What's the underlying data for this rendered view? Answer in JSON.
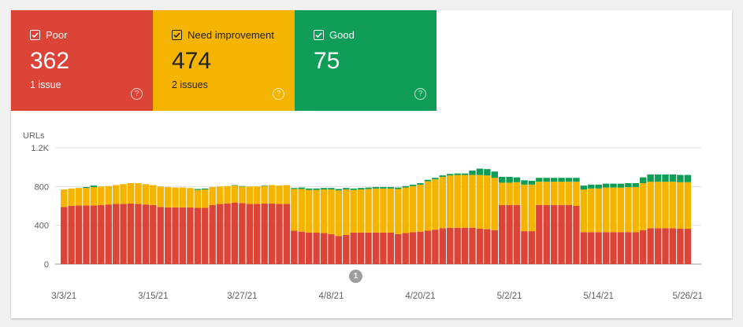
{
  "tiles": {
    "poor": {
      "label": "Poor",
      "count": "362",
      "issues": "1 issue",
      "color": "#db4437"
    },
    "need": {
      "label": "Need improvement",
      "count": "474",
      "issues": "2 issues",
      "color": "#f4b400"
    },
    "good": {
      "label": "Good",
      "count": "75",
      "color": "#0f9d58"
    },
    "help_icon": "?"
  },
  "annotation_marker": "1",
  "chart_data": {
    "type": "bar",
    "stacked": true,
    "ylabel": "URLs",
    "ylim": [
      0,
      1200
    ],
    "yticks": [
      "0",
      "400",
      "800",
      "1.2K"
    ],
    "ytick_values": [
      0,
      400,
      800,
      1200
    ],
    "xtick_labels": [
      "3/3/21",
      "3/15/21",
      "3/27/21",
      "4/8/21",
      "4/20/21",
      "5/2/21",
      "5/14/21",
      "5/26/21"
    ],
    "xtick_indices": [
      0,
      12,
      24,
      36,
      48,
      60,
      72,
      84
    ],
    "grid": true,
    "series": [
      {
        "name": "Poor",
        "color": "#db4437",
        "values": [
          590,
          600,
          605,
          605,
          605,
          610,
          615,
          620,
          620,
          625,
          620,
          615,
          610,
          590,
          585,
          585,
          585,
          585,
          580,
          580,
          610,
          620,
          625,
          635,
          630,
          620,
          620,
          625,
          625,
          620,
          620,
          345,
          335,
          325,
          325,
          320,
          310,
          290,
          300,
          325,
          325,
          325,
          325,
          325,
          325,
          310,
          320,
          330,
          335,
          345,
          355,
          370,
          375,
          375,
          375,
          375,
          365,
          360,
          350,
          610,
          610,
          610,
          340,
          340,
          610,
          610,
          610,
          610,
          610,
          600,
          330,
          330,
          330,
          330,
          330,
          330,
          330,
          330,
          350,
          370,
          370,
          370,
          370,
          365,
          365
        ]
      },
      {
        "name": "Need improvement",
        "values": [
          180,
          180,
          180,
          180,
          190,
          190,
          190,
          195,
          205,
          210,
          215,
          210,
          205,
          210,
          210,
          205,
          205,
          200,
          185,
          190,
          185,
          180,
          180,
          175,
          170,
          180,
          180,
          180,
          190,
          190,
          195,
          430,
          440,
          440,
          440,
          450,
          460,
          470,
          470,
          440,
          445,
          450,
          455,
          455,
          455,
          465,
          470,
          475,
          485,
          510,
          520,
          530,
          540,
          545,
          545,
          545,
          555,
          555,
          540,
          230,
          230,
          235,
          480,
          480,
          240,
          240,
          240,
          240,
          240,
          250,
          440,
          450,
          450,
          460,
          460,
          460,
          465,
          465,
          485,
          480,
          480,
          480,
          480,
          480,
          480
        ],
        "color": "#f4b400"
      },
      {
        "name": "Good",
        "values": [
          0,
          0,
          0,
          10,
          15,
          0,
          0,
          0,
          0,
          0,
          0,
          0,
          0,
          0,
          0,
          0,
          0,
          0,
          10,
          10,
          0,
          0,
          0,
          5,
          5,
          0,
          0,
          5,
          0,
          0,
          0,
          10,
          15,
          15,
          15,
          15,
          15,
          15,
          15,
          15,
          15,
          15,
          15,
          15,
          15,
          15,
          15,
          15,
          15,
          15,
          15,
          15,
          15,
          15,
          15,
          45,
          65,
          65,
          65,
          60,
          60,
          50,
          45,
          40,
          40,
          40,
          40,
          40,
          40,
          40,
          40,
          40,
          40,
          40,
          40,
          40,
          40,
          40,
          60,
          75,
          75,
          75,
          75,
          75,
          75
        ],
        "color": "#0f9d58"
      }
    ]
  }
}
